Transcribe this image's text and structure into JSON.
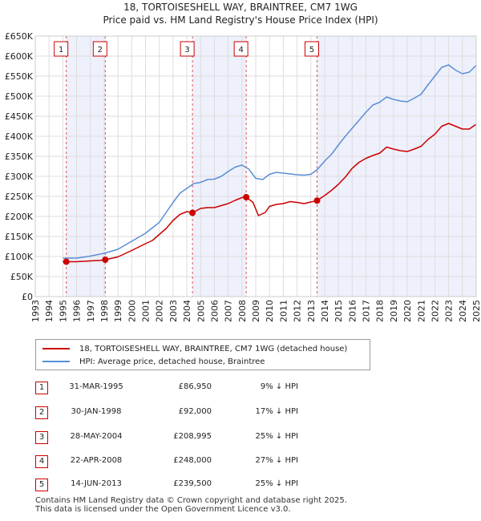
{
  "title_line1": "18, TORTOISESHELL WAY, BRAINTREE, CM7 1WG",
  "title_line2": "Price paid vs. HM Land Registry's House Price Index (HPI)",
  "legend": {
    "property": "18, TORTOISESHELL WAY, BRAINTREE, CM7 1WG (detached house)",
    "hpi": "HPI: Average price, detached house, Braintree"
  },
  "colors": {
    "property": "#cc0000",
    "hpi": "#5b8ed6",
    "marker": "#cc0000",
    "shade": "#eef0fb"
  },
  "transactions": [
    {
      "num": "1",
      "date": "31-MAR-1995",
      "price": "£86,950",
      "hpi": "9% ↓ HPI"
    },
    {
      "num": "2",
      "date": "30-JAN-1998",
      "price": "£92,000",
      "hpi": "17% ↓ HPI"
    },
    {
      "num": "3",
      "date": "28-MAY-2004",
      "price": "£208,995",
      "hpi": "25% ↓ HPI"
    },
    {
      "num": "4",
      "date": "22-APR-2008",
      "price": "£248,000",
      "hpi": "27% ↓ HPI"
    },
    {
      "num": "5",
      "date": "14-JUN-2013",
      "price": "£239,500",
      "hpi": "25% ↓ HPI"
    }
  ],
  "footer_line1": "Contains HM Land Registry data © Crown copyright and database right 2025.",
  "footer_line2": "This data is licensed under the Open Government Licence v3.0.",
  "chart_data": {
    "type": "line",
    "xlim": [
      1993,
      2025
    ],
    "ylim": [
      0,
      650000
    ],
    "x_ticks": [
      "1993",
      "1994",
      "1995",
      "1996",
      "1997",
      "1998",
      "1999",
      "2000",
      "2001",
      "2002",
      "2003",
      "2004",
      "2005",
      "2006",
      "2007",
      "2008",
      "2009",
      "2010",
      "2011",
      "2012",
      "2013",
      "2014",
      "2015",
      "2016",
      "2017",
      "2018",
      "2019",
      "2020",
      "2021",
      "2022",
      "2023",
      "2024",
      "2025"
    ],
    "y_ticks": [
      {
        "v": 0,
        "label": "£0"
      },
      {
        "v": 50000,
        "label": "£50K"
      },
      {
        "v": 100000,
        "label": "£100K"
      },
      {
        "v": 150000,
        "label": "£150K"
      },
      {
        "v": 200000,
        "label": "£200K"
      },
      {
        "v": 250000,
        "label": "£250K"
      },
      {
        "v": 300000,
        "label": "£300K"
      },
      {
        "v": 350000,
        "label": "£350K"
      },
      {
        "v": 400000,
        "label": "£400K"
      },
      {
        "v": 450000,
        "label": "£450K"
      },
      {
        "v": 500000,
        "label": "£500K"
      },
      {
        "v": 550000,
        "label": "£550K"
      },
      {
        "v": 600000,
        "label": "£600K"
      },
      {
        "v": 650000,
        "label": "£650K"
      }
    ],
    "grid": true,
    "shaded_periods": [
      [
        1995.25,
        1998.08
      ],
      [
        2004.41,
        2008.31
      ],
      [
        2013.45,
        2025.0
      ]
    ],
    "sales": [
      {
        "label": "1",
        "x": 1995.25,
        "y": 86950
      },
      {
        "label": "2",
        "x": 1998.08,
        "y": 92000
      },
      {
        "label": "3",
        "x": 2004.41,
        "y": 208995
      },
      {
        "label": "4",
        "x": 2008.31,
        "y": 248000
      },
      {
        "label": "5",
        "x": 2013.45,
        "y": 239500
      }
    ],
    "series": [
      {
        "name": "18, TORTOISESHELL WAY, BRAINTREE, CM7 1WG (detached house)",
        "points": [
          [
            1995.0,
            88000
          ],
          [
            1995.25,
            86950
          ],
          [
            1996.0,
            87000
          ],
          [
            1997.0,
            89000
          ],
          [
            1998.0,
            91000
          ],
          [
            1998.08,
            92000
          ],
          [
            1999.0,
            99000
          ],
          [
            2000.0,
            115000
          ],
          [
            2001.0,
            132000
          ],
          [
            2001.5,
            140000
          ],
          [
            2002.0,
            155000
          ],
          [
            2002.5,
            170000
          ],
          [
            2003.0,
            190000
          ],
          [
            2003.5,
            205000
          ],
          [
            2004.0,
            212000
          ],
          [
            2004.41,
            208995
          ],
          [
            2005.0,
            220000
          ],
          [
            2005.5,
            222000
          ],
          [
            2006.0,
            222000
          ],
          [
            2007.0,
            232000
          ],
          [
            2007.5,
            240000
          ],
          [
            2008.0,
            247000
          ],
          [
            2008.31,
            248000
          ],
          [
            2008.8,
            235000
          ],
          [
            2009.2,
            202000
          ],
          [
            2009.7,
            210000
          ],
          [
            2010.0,
            225000
          ],
          [
            2010.5,
            230000
          ],
          [
            2011.0,
            232000
          ],
          [
            2011.5,
            237000
          ],
          [
            2012.0,
            235000
          ],
          [
            2012.5,
            232000
          ],
          [
            2013.0,
            236000
          ],
          [
            2013.45,
            239500
          ],
          [
            2014.0,
            252000
          ],
          [
            2014.5,
            265000
          ],
          [
            2015.0,
            280000
          ],
          [
            2015.5,
            298000
          ],
          [
            2016.0,
            320000
          ],
          [
            2016.5,
            335000
          ],
          [
            2017.0,
            345000
          ],
          [
            2017.5,
            352000
          ],
          [
            2018.0,
            358000
          ],
          [
            2018.5,
            373000
          ],
          [
            2019.0,
            368000
          ],
          [
            2019.5,
            364000
          ],
          [
            2020.0,
            362000
          ],
          [
            2020.5,
            368000
          ],
          [
            2021.0,
            375000
          ],
          [
            2021.5,
            392000
          ],
          [
            2022.0,
            405000
          ],
          [
            2022.5,
            425000
          ],
          [
            2023.0,
            432000
          ],
          [
            2023.5,
            425000
          ],
          [
            2024.0,
            418000
          ],
          [
            2024.5,
            418000
          ],
          [
            2025.0,
            430000
          ]
        ]
      },
      {
        "name": "HPI: Average price, detached house, Braintree",
        "points": [
          [
            1995.0,
            96000
          ],
          [
            1996.0,
            96000
          ],
          [
            1997.0,
            101000
          ],
          [
            1998.0,
            108000
          ],
          [
            1999.0,
            118000
          ],
          [
            2000.0,
            138000
          ],
          [
            2001.0,
            158000
          ],
          [
            2002.0,
            185000
          ],
          [
            2002.5,
            210000
          ],
          [
            2003.0,
            235000
          ],
          [
            2003.5,
            258000
          ],
          [
            2004.0,
            270000
          ],
          [
            2004.5,
            282000
          ],
          [
            2005.0,
            285000
          ],
          [
            2005.5,
            292000
          ],
          [
            2006.0,
            293000
          ],
          [
            2006.5,
            300000
          ],
          [
            2007.0,
            312000
          ],
          [
            2007.5,
            323000
          ],
          [
            2008.0,
            328000
          ],
          [
            2008.5,
            318000
          ],
          [
            2009.0,
            295000
          ],
          [
            2009.5,
            292000
          ],
          [
            2010.0,
            305000
          ],
          [
            2010.5,
            310000
          ],
          [
            2011.0,
            308000
          ],
          [
            2011.5,
            306000
          ],
          [
            2012.0,
            304000
          ],
          [
            2012.5,
            303000
          ],
          [
            2013.0,
            305000
          ],
          [
            2013.5,
            318000
          ],
          [
            2014.0,
            338000
          ],
          [
            2014.5,
            355000
          ],
          [
            2015.0,
            378000
          ],
          [
            2015.5,
            400000
          ],
          [
            2016.0,
            420000
          ],
          [
            2016.5,
            440000
          ],
          [
            2017.0,
            460000
          ],
          [
            2017.5,
            478000
          ],
          [
            2018.0,
            485000
          ],
          [
            2018.5,
            498000
          ],
          [
            2019.0,
            492000
          ],
          [
            2019.5,
            488000
          ],
          [
            2020.0,
            486000
          ],
          [
            2020.5,
            495000
          ],
          [
            2021.0,
            505000
          ],
          [
            2021.5,
            528000
          ],
          [
            2022.0,
            550000
          ],
          [
            2022.5,
            572000
          ],
          [
            2023.0,
            578000
          ],
          [
            2023.5,
            565000
          ],
          [
            2024.0,
            556000
          ],
          [
            2024.5,
            560000
          ],
          [
            2025.0,
            577000
          ]
        ]
      }
    ]
  }
}
